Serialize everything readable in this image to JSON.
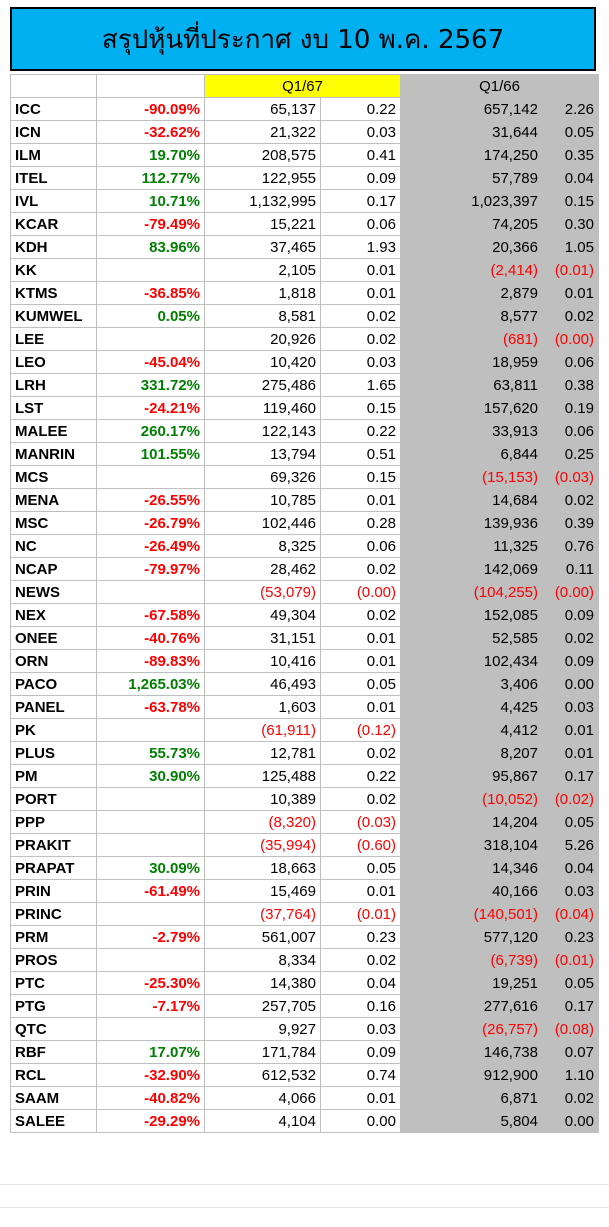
{
  "title": "สรุปหุ้นที่ประกาศ งบ 10 พ.ค. 2567",
  "headers": {
    "q167": "Q1/67",
    "q166": "Q1/66"
  },
  "colors": {
    "title_bg": "#00b0f0",
    "q167_header": "#ffff00",
    "q166_bg": "#bfbfbf",
    "negative": "#ff0000",
    "positive": "#008000"
  },
  "rows": [
    {
      "sym": "ICC",
      "pct": "-90.09%",
      "pd": "red",
      "a": "65,137",
      "ad": "black",
      "b": "0.22",
      "bd": "black",
      "c": "657,142",
      "cd": "black",
      "e": "2.26",
      "ed": "black"
    },
    {
      "sym": "ICN",
      "pct": "-32.62%",
      "pd": "red",
      "a": "21,322",
      "ad": "black",
      "b": "0.03",
      "bd": "black",
      "c": "31,644",
      "cd": "black",
      "e": "0.05",
      "ed": "black"
    },
    {
      "sym": "ILM",
      "pct": "19.70%",
      "pd": "green",
      "a": "208,575",
      "ad": "black",
      "b": "0.41",
      "bd": "black",
      "c": "174,250",
      "cd": "black",
      "e": "0.35",
      "ed": "black"
    },
    {
      "sym": "ITEL",
      "pct": "112.77%",
      "pd": "green",
      "a": "122,955",
      "ad": "black",
      "b": "0.09",
      "bd": "black",
      "c": "57,789",
      "cd": "black",
      "e": "0.04",
      "ed": "black"
    },
    {
      "sym": "IVL",
      "pct": "10.71%",
      "pd": "green",
      "a": "1,132,995",
      "ad": "black",
      "b": "0.17",
      "bd": "black",
      "c": "1,023,397",
      "cd": "black",
      "e": "0.15",
      "ed": "black"
    },
    {
      "sym": "KCAR",
      "pct": "-79.49%",
      "pd": "red",
      "a": "15,221",
      "ad": "black",
      "b": "0.06",
      "bd": "black",
      "c": "74,205",
      "cd": "black",
      "e": "0.30",
      "ed": "black"
    },
    {
      "sym": "KDH",
      "pct": "83.96%",
      "pd": "green",
      "a": "37,465",
      "ad": "black",
      "b": "1.93",
      "bd": "black",
      "c": "20,366",
      "cd": "black",
      "e": "1.05",
      "ed": "black"
    },
    {
      "sym": "KK",
      "pct": "",
      "pd": "black",
      "a": "2,105",
      "ad": "black",
      "b": "0.01",
      "bd": "black",
      "c": "(2,414)",
      "cd": "red",
      "e": "(0.01)",
      "ed": "red"
    },
    {
      "sym": "KTMS",
      "pct": "-36.85%",
      "pd": "red",
      "a": "1,818",
      "ad": "black",
      "b": "0.01",
      "bd": "black",
      "c": "2,879",
      "cd": "black",
      "e": "0.01",
      "ed": "black"
    },
    {
      "sym": "KUMWEL",
      "pct": "0.05%",
      "pd": "green",
      "a": "8,581",
      "ad": "black",
      "b": "0.02",
      "bd": "black",
      "c": "8,577",
      "cd": "black",
      "e": "0.02",
      "ed": "black"
    },
    {
      "sym": "LEE",
      "pct": "",
      "pd": "black",
      "a": "20,926",
      "ad": "black",
      "b": "0.02",
      "bd": "black",
      "c": "(681)",
      "cd": "red",
      "e": "(0.00)",
      "ed": "red"
    },
    {
      "sym": "LEO",
      "pct": "-45.04%",
      "pd": "red",
      "a": "10,420",
      "ad": "black",
      "b": "0.03",
      "bd": "black",
      "c": "18,959",
      "cd": "black",
      "e": "0.06",
      "ed": "black"
    },
    {
      "sym": "LRH",
      "pct": "331.72%",
      "pd": "green",
      "a": "275,486",
      "ad": "black",
      "b": "1.65",
      "bd": "black",
      "c": "63,811",
      "cd": "black",
      "e": "0.38",
      "ed": "black"
    },
    {
      "sym": "LST",
      "pct": "-24.21%",
      "pd": "red",
      "a": "119,460",
      "ad": "black",
      "b": "0.15",
      "bd": "black",
      "c": "157,620",
      "cd": "black",
      "e": "0.19",
      "ed": "black"
    },
    {
      "sym": "MALEE",
      "pct": "260.17%",
      "pd": "green",
      "a": "122,143",
      "ad": "black",
      "b": "0.22",
      "bd": "black",
      "c": "33,913",
      "cd": "black",
      "e": "0.06",
      "ed": "black"
    },
    {
      "sym": "MANRIN",
      "pct": "101.55%",
      "pd": "green",
      "a": "13,794",
      "ad": "black",
      "b": "0.51",
      "bd": "black",
      "c": "6,844",
      "cd": "black",
      "e": "0.25",
      "ed": "black"
    },
    {
      "sym": "MCS",
      "pct": "",
      "pd": "black",
      "a": "69,326",
      "ad": "black",
      "b": "0.15",
      "bd": "black",
      "c": "(15,153)",
      "cd": "red",
      "e": "(0.03)",
      "ed": "red"
    },
    {
      "sym": "MENA",
      "pct": "-26.55%",
      "pd": "red",
      "a": "10,785",
      "ad": "black",
      "b": "0.01",
      "bd": "black",
      "c": "14,684",
      "cd": "black",
      "e": "0.02",
      "ed": "black"
    },
    {
      "sym": "MSC",
      "pct": "-26.79%",
      "pd": "red",
      "a": "102,446",
      "ad": "black",
      "b": "0.28",
      "bd": "black",
      "c": "139,936",
      "cd": "black",
      "e": "0.39",
      "ed": "black"
    },
    {
      "sym": "NC",
      "pct": "-26.49%",
      "pd": "red",
      "a": "8,325",
      "ad": "black",
      "b": "0.06",
      "bd": "black",
      "c": "11,325",
      "cd": "black",
      "e": "0.76",
      "ed": "black"
    },
    {
      "sym": "NCAP",
      "pct": "-79.97%",
      "pd": "red",
      "a": "28,462",
      "ad": "black",
      "b": "0.02",
      "bd": "black",
      "c": "142,069",
      "cd": "black",
      "e": "0.11",
      "ed": "black"
    },
    {
      "sym": "NEWS",
      "pct": "",
      "pd": "black",
      "a": "(53,079)",
      "ad": "red",
      "b": "(0.00)",
      "bd": "red",
      "c": "(104,255)",
      "cd": "red",
      "e": "(0.00)",
      "ed": "red"
    },
    {
      "sym": "NEX",
      "pct": "-67.58%",
      "pd": "red",
      "a": "49,304",
      "ad": "black",
      "b": "0.02",
      "bd": "black",
      "c": "152,085",
      "cd": "black",
      "e": "0.09",
      "ed": "black"
    },
    {
      "sym": "ONEE",
      "pct": "-40.76%",
      "pd": "red",
      "a": "31,151",
      "ad": "black",
      "b": "0.01",
      "bd": "black",
      "c": "52,585",
      "cd": "black",
      "e": "0.02",
      "ed": "black"
    },
    {
      "sym": "ORN",
      "pct": "-89.83%",
      "pd": "red",
      "a": "10,416",
      "ad": "black",
      "b": "0.01",
      "bd": "black",
      "c": "102,434",
      "cd": "black",
      "e": "0.09",
      "ed": "black"
    },
    {
      "sym": "PACO",
      "pct": "1,265.03%",
      "pd": "green",
      "a": "46,493",
      "ad": "black",
      "b": "0.05",
      "bd": "black",
      "c": "3,406",
      "cd": "black",
      "e": "0.00",
      "ed": "black"
    },
    {
      "sym": "PANEL",
      "pct": "-63.78%",
      "pd": "red",
      "a": "1,603",
      "ad": "black",
      "b": "0.01",
      "bd": "black",
      "c": "4,425",
      "cd": "black",
      "e": "0.03",
      "ed": "black"
    },
    {
      "sym": "PK",
      "pct": "",
      "pd": "black",
      "a": "(61,911)",
      "ad": "red",
      "b": "(0.12)",
      "bd": "red",
      "c": "4,412",
      "cd": "black",
      "e": "0.01",
      "ed": "black"
    },
    {
      "sym": "PLUS",
      "pct": "55.73%",
      "pd": "green",
      "a": "12,781",
      "ad": "black",
      "b": "0.02",
      "bd": "black",
      "c": "8,207",
      "cd": "black",
      "e": "0.01",
      "ed": "black"
    },
    {
      "sym": "PM",
      "pct": "30.90%",
      "pd": "green",
      "a": "125,488",
      "ad": "black",
      "b": "0.22",
      "bd": "black",
      "c": "95,867",
      "cd": "black",
      "e": "0.17",
      "ed": "black"
    },
    {
      "sym": "PORT",
      "pct": "",
      "pd": "black",
      "a": "10,389",
      "ad": "black",
      "b": "0.02",
      "bd": "black",
      "c": "(10,052)",
      "cd": "red",
      "e": "(0.02)",
      "ed": "red"
    },
    {
      "sym": "PPP",
      "pct": "",
      "pd": "black",
      "a": "(8,320)",
      "ad": "red",
      "b": "(0.03)",
      "bd": "red",
      "c": "14,204",
      "cd": "black",
      "e": "0.05",
      "ed": "black"
    },
    {
      "sym": "PRAKIT",
      "pct": "",
      "pd": "black",
      "a": "(35,994)",
      "ad": "red",
      "b": "(0.60)",
      "bd": "red",
      "c": "318,104",
      "cd": "black",
      "e": "5.26",
      "ed": "black"
    },
    {
      "sym": "PRAPAT",
      "pct": "30.09%",
      "pd": "green",
      "a": "18,663",
      "ad": "black",
      "b": "0.05",
      "bd": "black",
      "c": "14,346",
      "cd": "black",
      "e": "0.04",
      "ed": "black"
    },
    {
      "sym": "PRIN",
      "pct": "-61.49%",
      "pd": "red",
      "a": "15,469",
      "ad": "black",
      "b": "0.01",
      "bd": "black",
      "c": "40,166",
      "cd": "black",
      "e": "0.03",
      "ed": "black"
    },
    {
      "sym": "PRINC",
      "pct": "",
      "pd": "black",
      "a": "(37,764)",
      "ad": "red",
      "b": "(0.01)",
      "bd": "red",
      "c": "(140,501)",
      "cd": "red",
      "e": "(0.04)",
      "ed": "red"
    },
    {
      "sym": "PRM",
      "pct": "-2.79%",
      "pd": "red",
      "a": "561,007",
      "ad": "black",
      "b": "0.23",
      "bd": "black",
      "c": "577,120",
      "cd": "black",
      "e": "0.23",
      "ed": "black"
    },
    {
      "sym": "PROS",
      "pct": "",
      "pd": "black",
      "a": "8,334",
      "ad": "black",
      "b": "0.02",
      "bd": "black",
      "c": "(6,739)",
      "cd": "red",
      "e": "(0.01)",
      "ed": "red"
    },
    {
      "sym": "PTC",
      "pct": "-25.30%",
      "pd": "red",
      "a": "14,380",
      "ad": "black",
      "b": "0.04",
      "bd": "black",
      "c": "19,251",
      "cd": "black",
      "e": "0.05",
      "ed": "black"
    },
    {
      "sym": "PTG",
      "pct": "-7.17%",
      "pd": "red",
      "a": "257,705",
      "ad": "black",
      "b": "0.16",
      "bd": "black",
      "c": "277,616",
      "cd": "black",
      "e": "0.17",
      "ed": "black"
    },
    {
      "sym": "QTC",
      "pct": "",
      "pd": "black",
      "a": "9,927",
      "ad": "black",
      "b": "0.03",
      "bd": "black",
      "c": "(26,757)",
      "cd": "red",
      "e": "(0.08)",
      "ed": "red"
    },
    {
      "sym": "RBF",
      "pct": "17.07%",
      "pd": "green",
      "a": "171,784",
      "ad": "black",
      "b": "0.09",
      "bd": "black",
      "c": "146,738",
      "cd": "black",
      "e": "0.07",
      "ed": "black"
    },
    {
      "sym": "RCL",
      "pct": "-32.90%",
      "pd": "red",
      "a": "612,532",
      "ad": "black",
      "b": "0.74",
      "bd": "black",
      "c": "912,900",
      "cd": "black",
      "e": "1.10",
      "ed": "black"
    },
    {
      "sym": "SAAM",
      "pct": "-40.82%",
      "pd": "red",
      "a": "4,066",
      "ad": "black",
      "b": "0.01",
      "bd": "black",
      "c": "6,871",
      "cd": "black",
      "e": "0.02",
      "ed": "black"
    },
    {
      "sym": "SALEE",
      "pct": "-29.29%",
      "pd": "red",
      "a": "4,104",
      "ad": "black",
      "b": "0.00",
      "bd": "black",
      "c": "5,804",
      "cd": "black",
      "e": "0.00",
      "ed": "black"
    }
  ]
}
